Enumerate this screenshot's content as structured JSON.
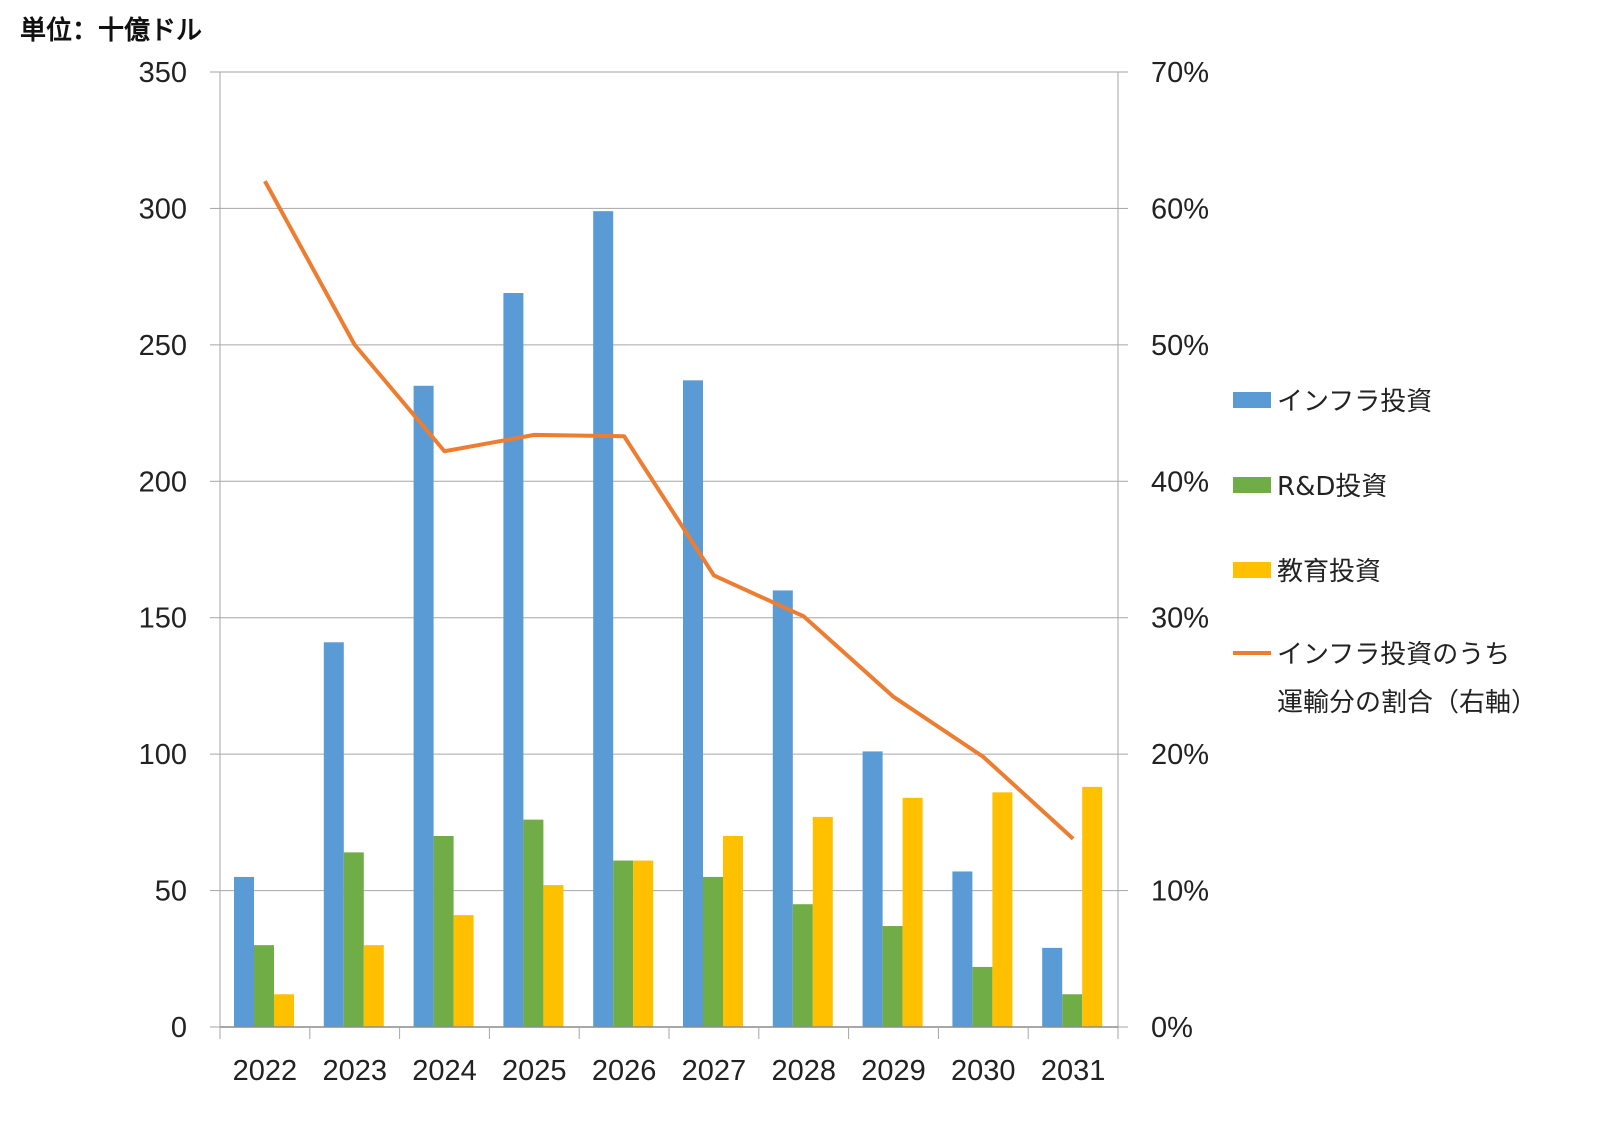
{
  "unit_label": "単位：十億ドル",
  "colors": {
    "infra": "#5B9BD5",
    "rd": "#70AD47",
    "edu": "#FFC000",
    "ratio": "#ED7D31",
    "grid": "#A6A6A6"
  },
  "chart_data": {
    "type": "bar",
    "categories": [
      "2022",
      "2023",
      "2024",
      "2025",
      "2026",
      "2027",
      "2028",
      "2029",
      "2030",
      "2031"
    ],
    "series": [
      {
        "name": "インフラ投資",
        "type": "bar",
        "axis": "left",
        "values": [
          55,
          141,
          235,
          269,
          299,
          237,
          160,
          101,
          57,
          29
        ]
      },
      {
        "name": "R&D投資",
        "type": "bar",
        "axis": "left",
        "values": [
          30,
          64,
          70,
          76,
          61,
          55,
          45,
          37,
          22,
          12
        ]
      },
      {
        "name": "教育投資",
        "type": "bar",
        "axis": "left",
        "values": [
          12,
          30,
          41,
          52,
          61,
          70,
          77,
          84,
          86,
          88
        ]
      },
      {
        "name": "インフラ投資のうち運輸分の割合（右軸）",
        "type": "line",
        "axis": "right",
        "values": [
          62,
          50,
          42.2,
          43.4,
          43.3,
          33.1,
          30.1,
          24.2,
          19.8,
          13.8
        ]
      }
    ],
    "legend_lines": [
      [
        "インフラ投資"
      ],
      [
        "R&D投資"
      ],
      [
        "教育投資"
      ],
      [
        "インフラ投資のうち",
        "運輸分の割合（右軸）"
      ]
    ],
    "y_left": {
      "min": 0,
      "max": 350,
      "step": 50,
      "ticks": [
        "0",
        "50",
        "100",
        "150",
        "200",
        "250",
        "300",
        "350"
      ]
    },
    "y_right": {
      "min": 0,
      "max": 70,
      "step": 10,
      "ticks": [
        "0%",
        "10%",
        "20%",
        "30%",
        "40%",
        "50%",
        "60%",
        "70%"
      ]
    },
    "grid": true,
    "legend_position": "right"
  }
}
